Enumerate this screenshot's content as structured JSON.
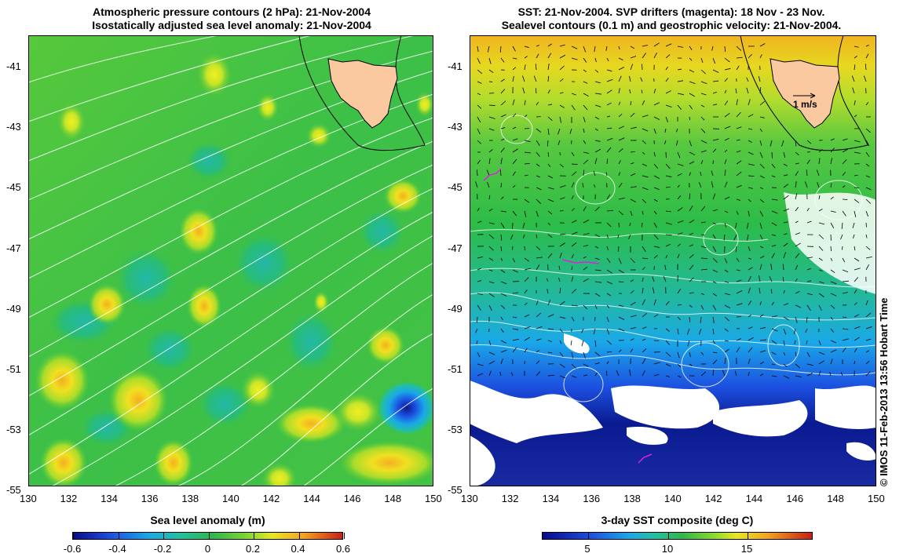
{
  "left": {
    "title_line1": "Atmospheric pressure contours (2 hPa): 21-Nov-2004",
    "title_line2": "Isostatically adjusted sea level anomaly: 21-Nov-2004",
    "colorbar_label": "Sea level anomaly (m)",
    "colorbar_ticks": [
      "-0.6",
      "-0.4",
      "-0.2",
      "0",
      "0.2",
      "0.4",
      "0.6"
    ],
    "colorbar_range": [
      -0.6,
      0.6
    ]
  },
  "right": {
    "title_line1": "SST: 21-Nov-2004. SVP drifters (magenta): 18 Nov - 23 Nov.",
    "title_line2": "Sealevel contours (0.1 m) and geostrophic velocity: 21-Nov-2004.",
    "velocity_scale_label": "1 m/s",
    "colorbar_label": "3-day SST composite (deg C)",
    "colorbar_ticks": [
      "5",
      "10",
      "15"
    ]
  },
  "axes": {
    "lat_labels": [
      "-41",
      "-43",
      "-45",
      "-47",
      "-49",
      "-51",
      "-53",
      "-55"
    ],
    "lon_labels": [
      "130",
      "132",
      "134",
      "136",
      "138",
      "140",
      "142",
      "144",
      "146",
      "148",
      "150"
    ]
  },
  "credit": "© IMOS 11-Feb-2013 13:56 Hobart Time",
  "colors": {
    "land": "#fbc9a0",
    "ocean_mid": "#2db84a",
    "anomaly_high": "#e8e820",
    "anomaly_low": "#1c50e0",
    "drifter": "#e020e0",
    "contour": "#ffffff"
  }
}
